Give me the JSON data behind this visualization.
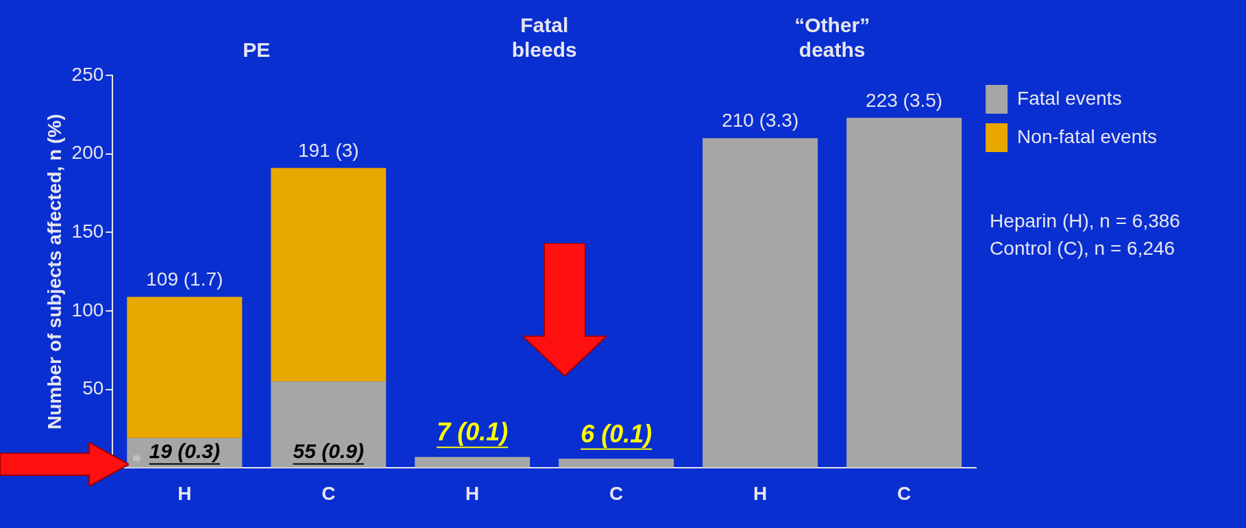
{
  "chart_data": {
    "type": "bar",
    "stacked": true,
    "categories": [
      "H",
      "C",
      "H",
      "C",
      "H",
      "C"
    ],
    "series": [
      {
        "name": "Fatal events",
        "color": "#a6a6a6",
        "values": [
          19,
          55,
          7,
          6,
          210,
          223
        ],
        "value_labels": [
          "19 (0.3)",
          "55 (0.9)",
          "7 (0.1)",
          "6 (0.1)",
          null,
          null
        ]
      },
      {
        "name": "Non-fatal events",
        "color": "#e8a800",
        "values": [
          90,
          136,
          null,
          null,
          null,
          null
        ]
      }
    ],
    "totals": [
      "109 (1.7)",
      "191 (3)",
      null,
      null,
      "210 (3.3)",
      "223 (3.5)"
    ],
    "ylabel": "Number of subjects affected, n (%)",
    "ylim": [
      0,
      250
    ],
    "yticks": [
      {
        "value": 0,
        "label": null
      },
      50,
      100,
      150,
      200,
      250
    ],
    "grid": false,
    "legend": "right",
    "annotations": [
      "PE",
      "Fatal bleeds",
      "“Other” deaths",
      "Heparin (H), n = 6,386",
      "Control (C), n = 6,246"
    ]
  }
}
